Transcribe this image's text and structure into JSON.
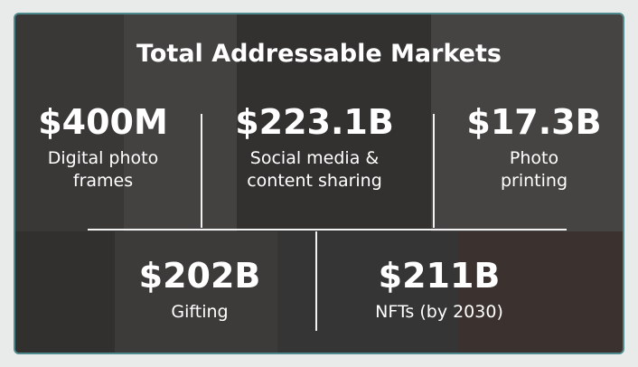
{
  "title": "Total Addressable Markets",
  "markets": [
    {
      "value": "$400M",
      "label": [
        "Digital photo",
        "frames"
      ]
    },
    {
      "value": "$223.1B",
      "label": [
        "Social media &",
        "content sharing"
      ]
    },
    {
      "value": "$17.3B",
      "label": [
        "Photo",
        "printing"
      ]
    },
    {
      "value": "$202B",
      "label": [
        "Gifting"
      ]
    },
    {
      "value": "$211B",
      "label": [
        "NFTs (by 2030)"
      ]
    }
  ]
}
